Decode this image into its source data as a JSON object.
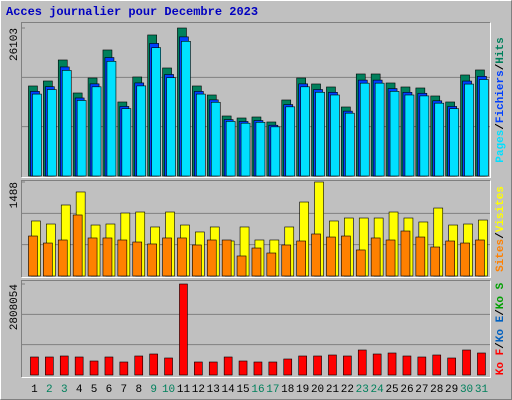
{
  "title": "Acces journalier pour Decembre 2023",
  "legend_separator": "/",
  "chart_data": [
    {
      "type": "bar",
      "ylim": [
        0,
        26103
      ],
      "yticks": [
        26103
      ],
      "series": [
        {
          "name": "Pages",
          "color": "#00E0FF",
          "values": [
            14447,
            15250,
            18620,
            13323,
            15731,
            20226,
            11879,
            15892,
            22634,
            17336,
            23754,
            14447,
            13002,
            9631,
            9310,
            9471,
            8669,
            12199,
            15731,
            14768,
            14287,
            11077,
            16374,
            16374,
            14929,
            14287,
            14126,
            12842,
            11879,
            16213,
            17015
          ]
        },
        {
          "name": "Fichiers",
          "color": "#0040FF",
          "values": [
            14923,
            15753,
            19234,
            13763,
            16250,
            20892,
            12271,
            16416,
            23380,
            17908,
            24537,
            14923,
            13431,
            9949,
            9617,
            9784,
            8954,
            12602,
            16250,
            15255,
            14758,
            11442,
            16913,
            16913,
            15421,
            14758,
            14592,
            13265,
            12271,
            16747,
            17576
          ]
        },
        {
          "name": "Hits",
          "color": "#00805C",
          "values": [
            15876,
            16758,
            20462,
            14641,
            17287,
            22226,
            13054,
            17464,
            24872,
            19051,
            26103,
            15876,
            14288,
            10584,
            10231,
            10408,
            9526,
            13406,
            17287,
            16229,
            15700,
            12172,
            17993,
            17993,
            16405,
            15700,
            15523,
            14112,
            13054,
            17816,
            18698
          ]
        }
      ]
    },
    {
      "type": "bar",
      "ylim": [
        0,
        1488
      ],
      "yticks": [
        1488
      ],
      "series": [
        {
          "name": "Sites",
          "color": "#FF8000",
          "values": [
            633,
            522,
            570,
            966,
            602,
            602,
            570,
            538,
            507,
            602,
            602,
            491,
            570,
            570,
            317,
            443,
            364,
            491,
            554,
            665,
            617,
            633,
            412,
            602,
            570,
            712,
            617,
            459,
            554,
            522,
            570
          ]
        },
        {
          "name": "Visites",
          "color": "#FFFF00",
          "values": [
            871,
            823,
            1124,
            1330,
            807,
            823,
            997,
            1013,
            776,
            1013,
            807,
            697,
            776,
            554,
            776,
            570,
            570,
            776,
            1171,
            1488,
            871,
            918,
            918,
            918,
            1013,
            918,
            855,
            1076,
            807,
            823,
            886
          ]
        }
      ]
    },
    {
      "type": "bar",
      "ylim": [
        0,
        2808054
      ],
      "yticks": [
        2808054
      ],
      "categories": [
        "1",
        "2",
        "3",
        "4",
        "5",
        "6",
        "7",
        "8",
        "9",
        "10",
        "11",
        "12",
        "13",
        "14",
        "15",
        "16",
        "17",
        "18",
        "19",
        "20",
        "21",
        "22",
        "23",
        "24",
        "25",
        "26",
        "27",
        "28",
        "29",
        "30",
        "31"
      ],
      "category_colors": [
        "#000000",
        "#00805C",
        "#00805C",
        "#000000",
        "#000000",
        "#000000",
        "#000000",
        "#000000",
        "#00805C",
        "#00805C",
        "#000000",
        "#000000",
        "#000000",
        "#000000",
        "#000000",
        "#00805C",
        "#00805C",
        "#000000",
        "#000000",
        "#000000",
        "#000000",
        "#000000",
        "#00805C",
        "#00805C",
        "#000000",
        "#000000",
        "#000000",
        "#000000",
        "#000000",
        "#00805C",
        "#00805C"
      ],
      "series": [
        {
          "name": "Ko F",
          "color": "#FF0000",
          "values": [
            555444,
            555444,
            586302,
            555444,
            432012,
            555444,
            401154,
            586302,
            648018,
            524586,
            2808054,
            401154,
            401154,
            555444,
            432012,
            401154,
            401154,
            493728,
            586302,
            586302,
            617160,
            586302,
            771450,
            648018,
            678876,
            586302,
            555444,
            617160,
            524586,
            771450,
            678876
          ]
        }
      ],
      "extra_legend": [
        {
          "name": "Ko E",
          "color": "#0060C0"
        },
        {
          "name": "Ko S",
          "color": "#00A000"
        }
      ]
    }
  ]
}
